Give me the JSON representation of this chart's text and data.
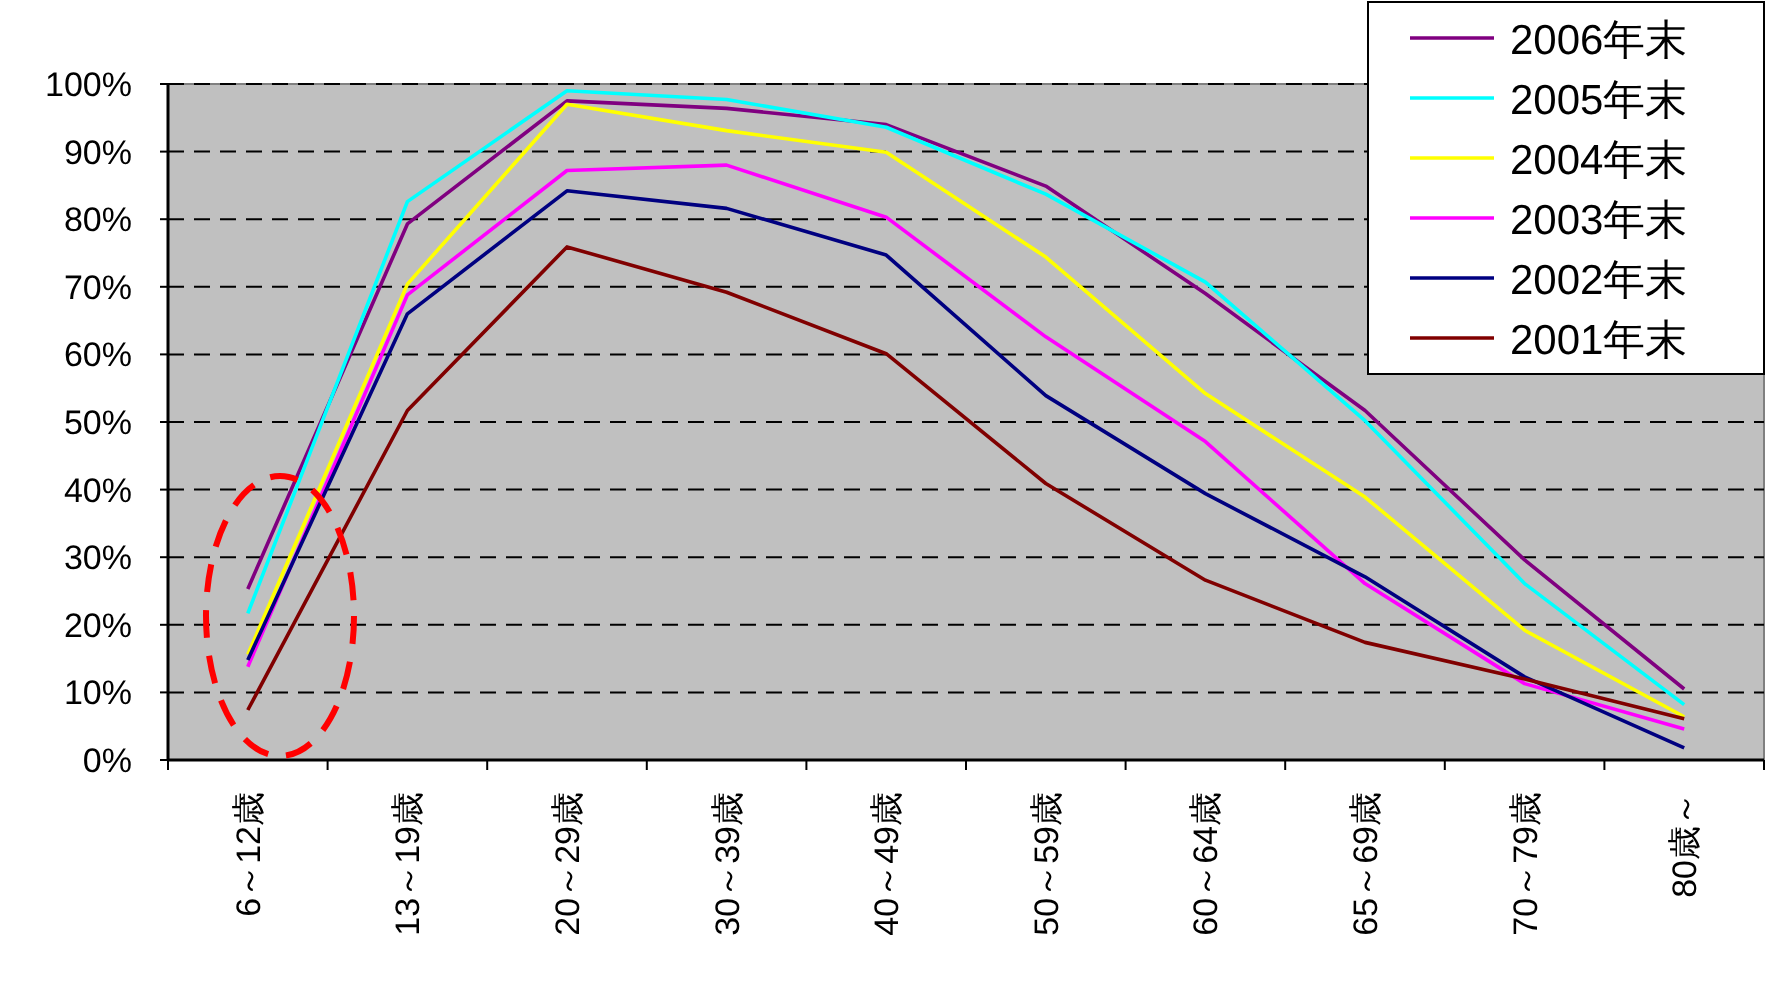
{
  "chart_data": {
    "type": "line",
    "categories": [
      "6～12歳",
      "13～19歳",
      "20～29歳",
      "30～39歳",
      "40～49歳",
      "50～59歳",
      "60～64歳",
      "65～69歳",
      "70～79歳",
      "80歳～"
    ],
    "series": [
      {
        "name": "2006年末",
        "color": "#800080",
        "values": [
          25.3,
          79.3,
          97.5,
          96.4,
          94,
          84.9,
          69,
          51.7,
          29.6,
          10.5
        ]
      },
      {
        "name": "2005年末",
        "color": "#00ffff",
        "values": [
          21.7,
          82.6,
          99,
          97.7,
          93.6,
          83.7,
          70.7,
          50.2,
          26.1,
          8.2
        ]
      },
      {
        "name": "2004年末",
        "color": "#ffff00",
        "values": [
          15.6,
          70.4,
          97,
          93.1,
          89.9,
          74.4,
          54.2,
          38.9,
          19.2,
          6.4
        ]
      },
      {
        "name": "2003年末",
        "color": "#ff00ff",
        "values": [
          13.8,
          68.8,
          87.2,
          88,
          80.3,
          62.6,
          47.1,
          26.1,
          11.3,
          4.6
        ]
      },
      {
        "name": "2002年末",
        "color": "#000080",
        "values": [
          14.8,
          66,
          84.2,
          81.6,
          74.7,
          53.9,
          39.4,
          27.1,
          12.3,
          1.8
        ]
      },
      {
        "name": "2001年末",
        "color": "#800000",
        "values": [
          7.4,
          51.7,
          75.9,
          69.2,
          60.1,
          40.9,
          26.6,
          17.4,
          12,
          6.1
        ]
      }
    ],
    "ylim": [
      0,
      100
    ],
    "yticks": [
      {
        "value": 0,
        "label": "0%"
      },
      {
        "value": 10,
        "label": "10%"
      },
      {
        "value": 20,
        "label": "20%"
      },
      {
        "value": 30,
        "label": "30%"
      },
      {
        "value": 40,
        "label": "40%"
      },
      {
        "value": 50,
        "label": "50%"
      },
      {
        "value": 60,
        "label": "60%"
      },
      {
        "value": 70,
        "label": "70%"
      },
      {
        "value": 80,
        "label": "80%"
      },
      {
        "value": 90,
        "label": "90%"
      },
      {
        "value": 100,
        "label": "100%"
      }
    ],
    "grid": "y",
    "legend": "top right",
    "marker": "none",
    "line_style": "solid"
  }
}
